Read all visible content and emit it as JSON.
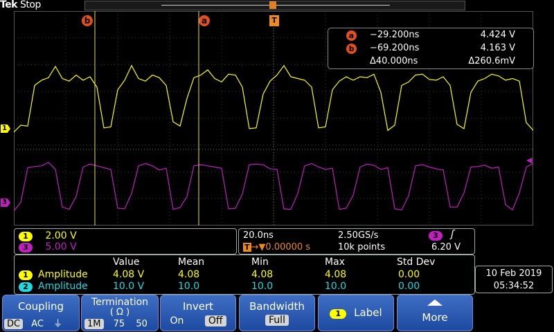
{
  "header": {
    "brand": "Tek",
    "state": "Stop"
  },
  "cursors": {
    "a_label": "a",
    "b_label": "b",
    "trigger_label": "T"
  },
  "channel_markers": {
    "ch1": "1",
    "ch3": "3"
  },
  "cursor_readout": {
    "a": {
      "label": "a",
      "time": "−29.200ns",
      "value": "4.424 V"
    },
    "b": {
      "label": "b",
      "time": "−69.200ns",
      "value": "4.163 V"
    },
    "delta": {
      "time": "Δ40.000ns",
      "value": "Δ260.6mV"
    }
  },
  "vertical": {
    "ch1": {
      "label": "1",
      "scale": "2.00 V",
      "color": "#ffff00"
    },
    "ch3": {
      "label": "3",
      "scale": "5.00 V",
      "color": "#c020c0"
    }
  },
  "horizontal": {
    "time_div": "20.0ns",
    "sample_rate": "2.50GS/s",
    "trigger_source": "3",
    "trigger_slope_icon": "rising-edge-icon",
    "trigger_position": "▼0.00000 s",
    "record_length": "10k points",
    "trigger_level": "6.20 V"
  },
  "measurements": {
    "headers": [
      "Value",
      "Mean",
      "Min",
      "Max",
      "Std Dev"
    ],
    "rows": [
      {
        "channel": "1",
        "name": "Amplitude",
        "color": "#ffff00",
        "cells": [
          "4.08 V",
          "4.08",
          "4.08",
          "4.08",
          "0.00"
        ]
      },
      {
        "channel": "2",
        "name": "Amplitude",
        "color": "#22d8e0",
        "cells": [
          "10.0 V",
          "10.0",
          "10.0",
          "10.0",
          "0.00"
        ]
      }
    ]
  },
  "datetime": {
    "date": "10 Feb 2019",
    "time": "05:34:52"
  },
  "softkeys": {
    "coupling": {
      "title": "Coupling",
      "options": [
        "DC",
        "AC",
        "⏚"
      ]
    },
    "termination": {
      "title": "Termination",
      "unit": "( Ω )",
      "options": [
        "1M",
        "75",
        "50"
      ]
    },
    "invert": {
      "title": "Invert",
      "options": [
        "On",
        "Off"
      ]
    },
    "bandwidth": {
      "title": "Bandwidth",
      "value": "Full"
    },
    "label": {
      "channel": "1",
      "title": "Label"
    },
    "more": {
      "title": "More"
    }
  },
  "traces": {
    "ch1": {
      "color": "#ffff00",
      "levels": [
        96,
        104,
        103,
        150,
        156,
        159,
        172,
        158,
        155,
        162,
        156,
        160,
        148,
        101,
        102,
        145,
        156,
        173,
        158,
        155,
        162,
        159,
        150,
        108,
        103,
        135,
        159,
        162,
        168,
        158,
        154,
        163,
        162,
        148,
        100,
        101,
        140,
        155,
        162,
        173,
        160,
        158,
        156,
        148,
        101,
        102,
        145,
        155,
        160,
        156,
        160,
        159,
        163,
        142,
        98,
        104,
        150,
        154,
        162,
        163,
        157,
        156,
        160,
        150,
        105,
        100,
        142,
        155,
        158,
        163,
        161,
        156,
        158,
        155,
        107,
        98
      ]
    },
    "ch3": {
      "color": "#c020c0",
      "levels": [
        15,
        30,
        89,
        91,
        92,
        98,
        86,
        22,
        18,
        40,
        90,
        95,
        92,
        89,
        86,
        20,
        19,
        45,
        92,
        96,
        92,
        85,
        88,
        18,
        21,
        40,
        92,
        94,
        92,
        90,
        88,
        19,
        20,
        44,
        94,
        95,
        94,
        87,
        86,
        19,
        18,
        45,
        92,
        96,
        90,
        86,
        88,
        18,
        20,
        42,
        90,
        95,
        93,
        86,
        89,
        19,
        17,
        41,
        92,
        94,
        90,
        87,
        85,
        22,
        22,
        46,
        90,
        91,
        93,
        88,
        90,
        26,
        17,
        46,
        90,
        96
      ]
    }
  }
}
